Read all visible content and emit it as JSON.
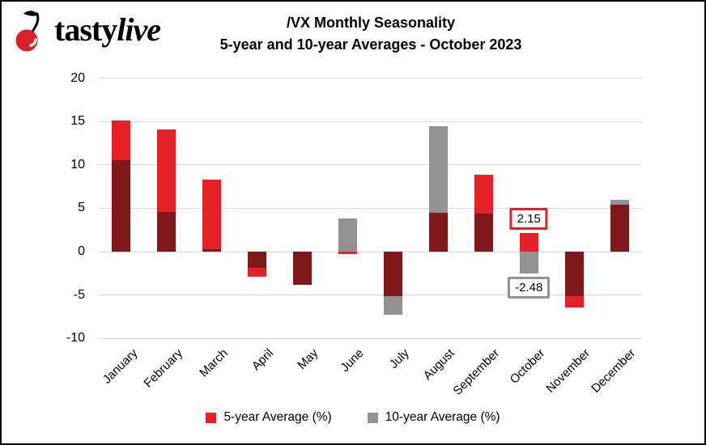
{
  "logo": {
    "brand_regular": "tasty",
    "brand_italic": "live",
    "cherry_color": "#da2127"
  },
  "title": {
    "line1": "/VX Monthly Seasonality",
    "line2": "5-year and 10-year Averages - October 2023"
  },
  "chart_data": {
    "type": "bar",
    "subtype": "overlapped-bars",
    "title": "/VX Monthly Seasonality",
    "subtitle": "5-year and 10-year Averages - October 2023",
    "categories": [
      "January",
      "February",
      "March",
      "April",
      "May",
      "June",
      "July",
      "August",
      "September",
      "October",
      "November",
      "December"
    ],
    "series": [
      {
        "name": "5-year Average (%)",
        "color": "#e32127",
        "values": [
          15.1,
          14.1,
          8.3,
          -2.9,
          -3.8,
          -0.3,
          -5.1,
          4.5,
          8.9,
          2.15,
          -6.4,
          5.4
        ]
      },
      {
        "name": "10-year Average (%)",
        "color": "#929292",
        "values": [
          10.5,
          4.6,
          0.3,
          -1.9,
          -3.8,
          3.8,
          -7.3,
          14.5,
          4.4,
          -2.48,
          -5.1,
          6.0
        ]
      }
    ],
    "overlap_color": "#7f181b",
    "yticks": [
      20,
      15,
      10,
      5,
      0,
      -5,
      -10
    ],
    "ylim": [
      -10,
      20
    ],
    "grid": true,
    "grid_color": "#d9d9d9",
    "legend_position": "bottom",
    "annotations": [
      {
        "text": "2.15",
        "month_index": 9,
        "value": 2.15,
        "position": "above",
        "border_color": "#e32127"
      },
      {
        "text": "-2.48",
        "month_index": 9,
        "value": -2.48,
        "position": "below",
        "border_color": "#929292"
      }
    ]
  }
}
